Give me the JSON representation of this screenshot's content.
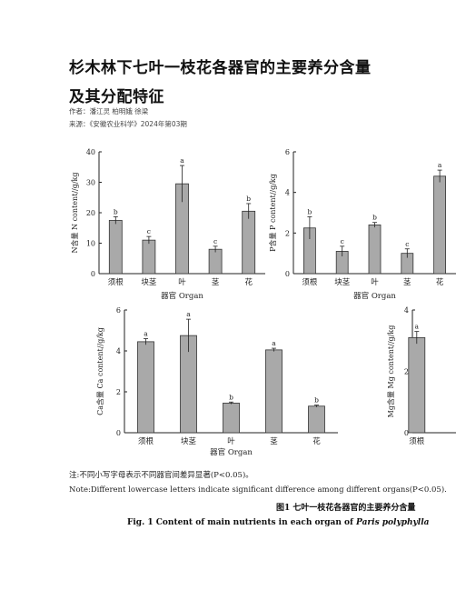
{
  "article": {
    "title_line1": "杉木林下七叶一枝花各器官的主要养分含量",
    "title_line2": "及其分配特征",
    "authors": "作者：潘江灵 柏明娥 徐梁",
    "source": "来源：《安徽农业科学》2024年第03期"
  },
  "chart_data": [
    {
      "type": "bar",
      "panel": "N",
      "categories": [
        "须根",
        "块茎",
        "叶",
        "茎",
        "花"
      ],
      "values": [
        17.5,
        11,
        29.5,
        8,
        20.5
      ],
      "errors": [
        1.2,
        1.2,
        6,
        1,
        2.5
      ],
      "letters": [
        "b",
        "c",
        "a",
        "c",
        "b"
      ],
      "ylabel": "N含量 N content//g/kg",
      "xlabel": "器官 Organ",
      "ylim": [
        0,
        40
      ],
      "yticks": [
        "0",
        "10",
        "20",
        "30",
        "40"
      ]
    },
    {
      "type": "bar",
      "panel": "P",
      "categories": [
        "须根",
        "块茎",
        "叶",
        "茎",
        "花"
      ],
      "values": [
        2.25,
        1.1,
        2.4,
        1.0,
        4.8
      ],
      "errors": [
        0.55,
        0.25,
        0.12,
        0.22,
        0.3
      ],
      "letters": [
        "b",
        "c",
        "b",
        "c",
        "a"
      ],
      "ylabel": "P含量 P content//g/kg",
      "xlabel": "器官 Organ",
      "ylim": [
        0,
        6
      ],
      "yticks": [
        "0",
        "2",
        "4",
        "6"
      ]
    },
    {
      "type": "bar",
      "panel": "Ca",
      "categories": [
        "须根",
        "块茎",
        "叶",
        "茎",
        "花"
      ],
      "values": [
        4.45,
        4.75,
        1.45,
        4.05,
        1.3
      ],
      "errors": [
        0.15,
        0.8,
        0.05,
        0.08,
        0.05
      ],
      "letters": [
        "a",
        "a",
        "b",
        "a",
        "b"
      ],
      "ylabel": "Ca含量 Ca content//g/kg",
      "xlabel": "器官 Organ",
      "ylim": [
        0,
        6
      ],
      "yticks": [
        "0",
        "2",
        "4",
        "6"
      ]
    },
    {
      "type": "bar",
      "panel": "Mg",
      "categories": [
        "须根"
      ],
      "values": [
        3.1
      ],
      "errors": [
        0.2
      ],
      "letters": [
        "a"
      ],
      "ylabel": "Mg含量 Mg content//g/kg",
      "xlabel": "",
      "ylim": [
        0,
        4
      ],
      "yticks": [
        "0",
        "2",
        "4"
      ]
    }
  ],
  "notes": {
    "cn": "注:不同小写字母表示不同器官间差异显著(P<0.05)。",
    "en": "Note:Different lowercase letters indicate significant difference among different organs(P<0.05).",
    "fig_cn": "图1  七叶一枝花各器官的主要养分含量",
    "fig_en_prefix": "Fig. 1   Content of main nutrients in each organ of ",
    "fig_en_species": "Paris polyphylla"
  }
}
